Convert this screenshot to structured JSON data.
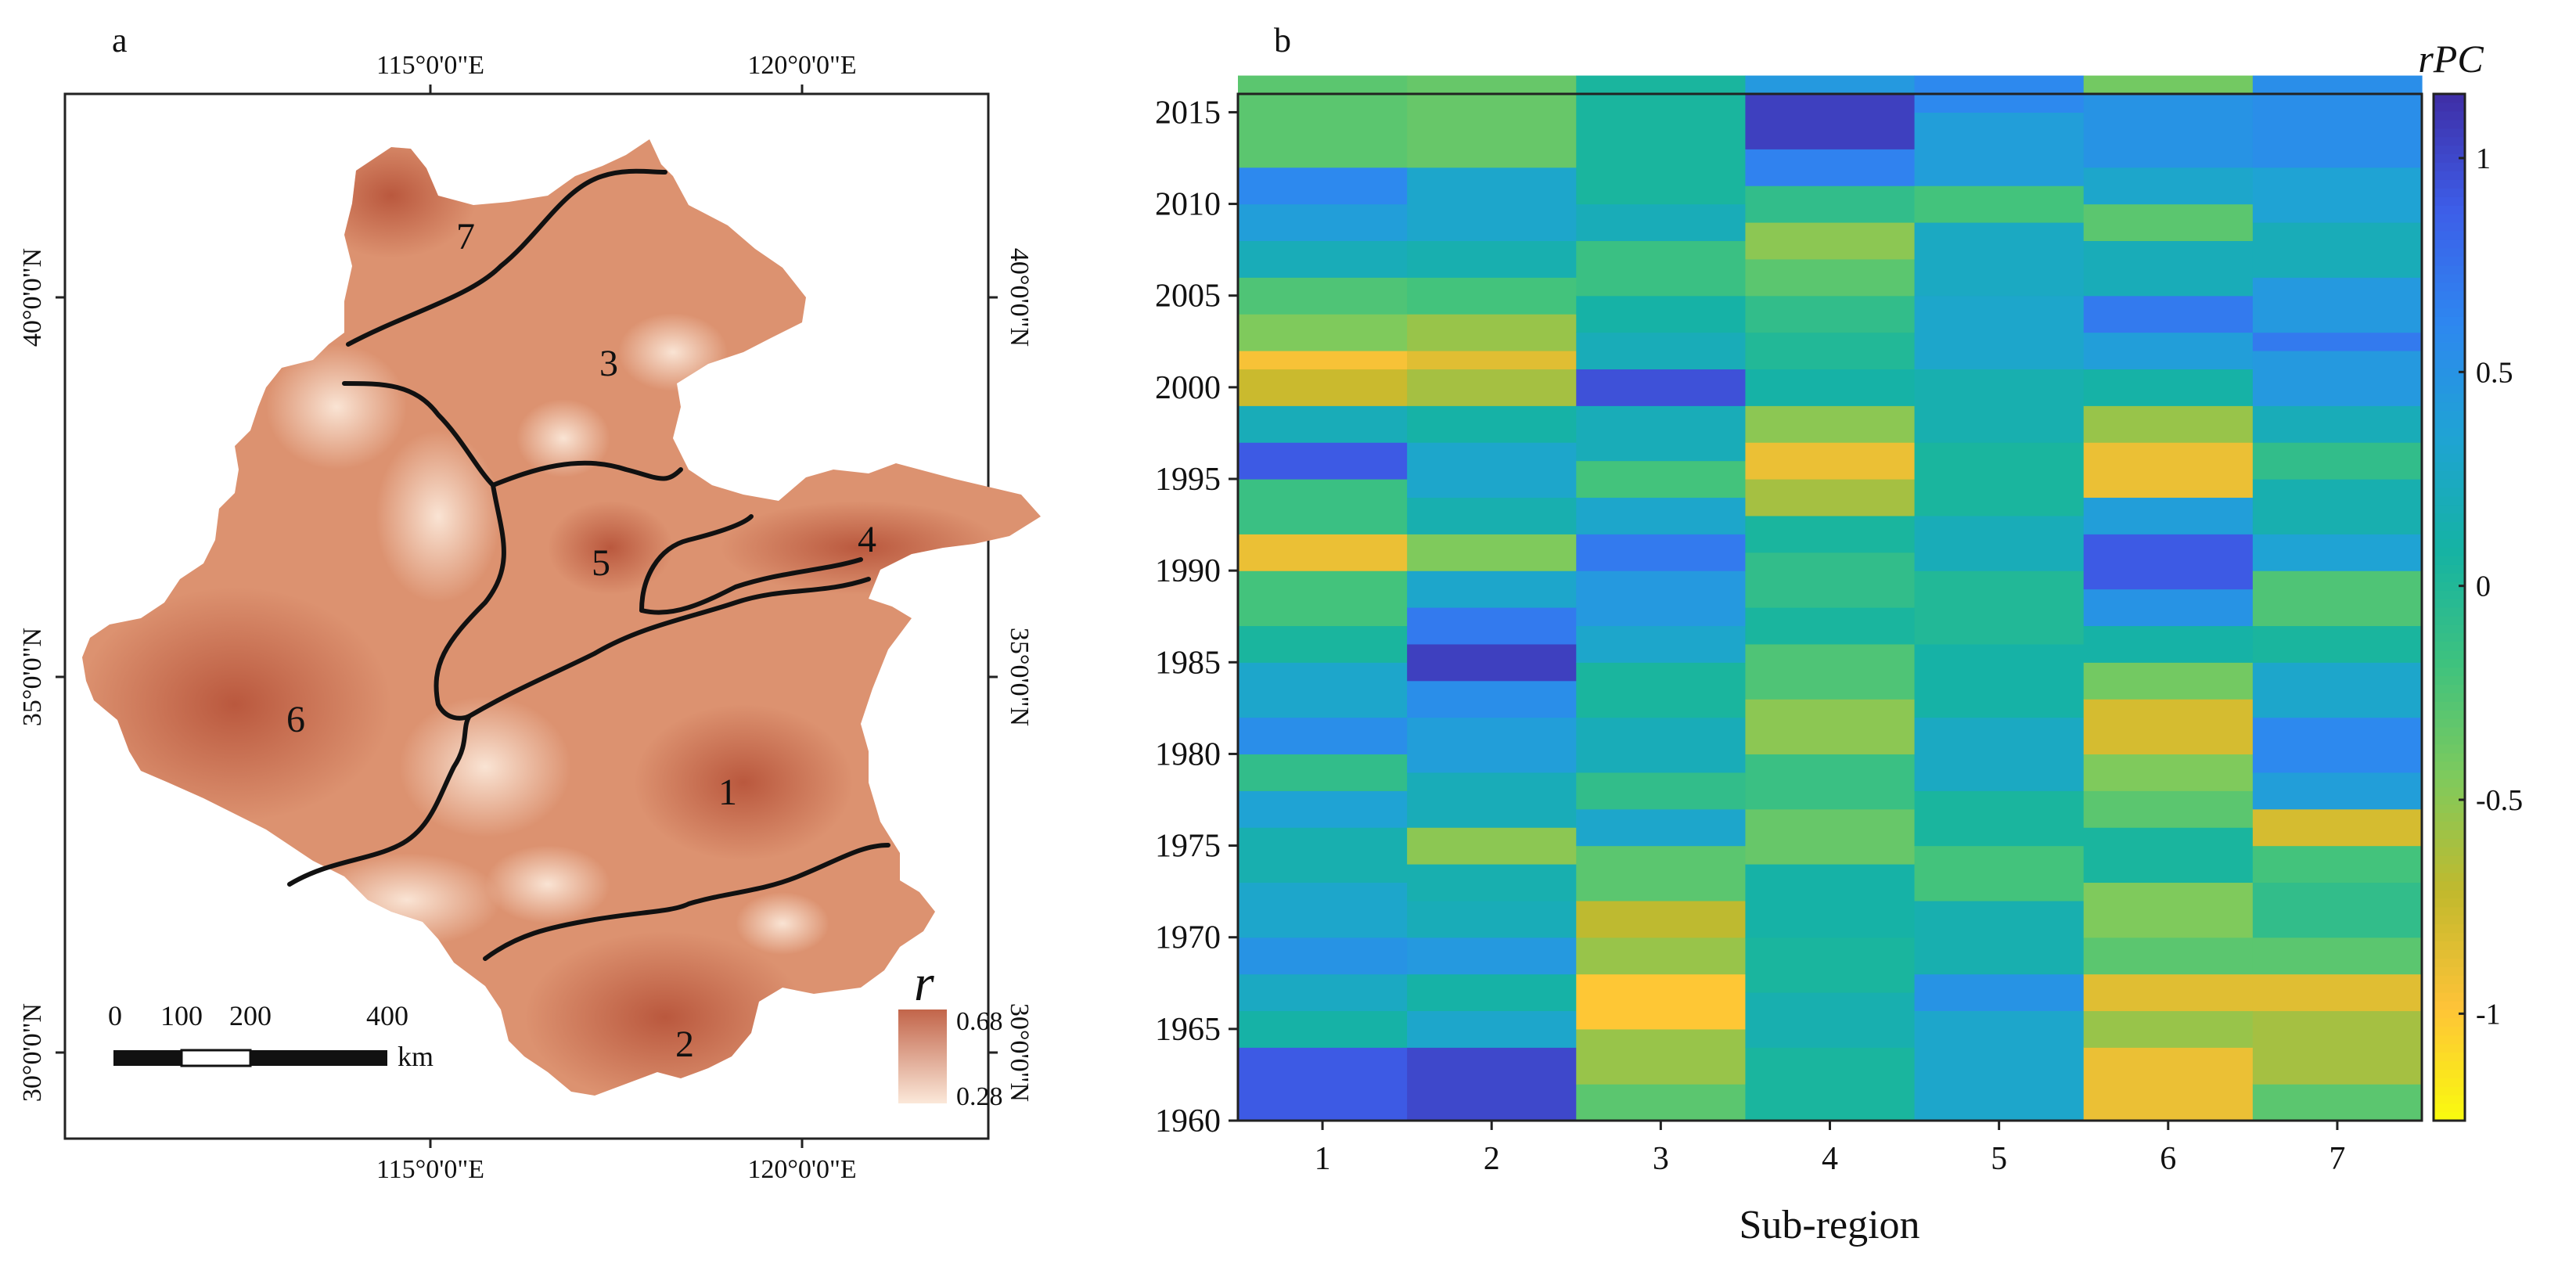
{
  "panel_a": {
    "label": "a",
    "top_ticks": [
      "115°0'0\"E",
      "120°0'0\"E"
    ],
    "bottom_ticks": [
      "115°0'0\"E",
      "120°0'0\"E"
    ],
    "left_ticks": [
      "40°0'0\"N",
      "35°0'0\"N",
      "30°0'0\"N"
    ],
    "right_ticks": [
      "40°0'0\"N",
      "35°0'0\"N",
      "30°0'0\"N"
    ],
    "regions": [
      "1",
      "2",
      "3",
      "4",
      "5",
      "6",
      "7"
    ],
    "scalebar": {
      "ticks": [
        "0",
        "100",
        "200",
        "400"
      ],
      "unit": "km"
    },
    "legend": {
      "symbol": "r",
      "max": "0.68",
      "min": "0.28",
      "max_color": "#c2654a",
      "min_color": "#fbe8d9"
    },
    "colors": {
      "land": "#dc9270",
      "land_light": "#f6d8c2",
      "land_dark": "#b8553b"
    }
  },
  "chart_data": {
    "type": "heatmap",
    "label": "b",
    "xlabel": "Sub-region",
    "x_categories": [
      "1",
      "2",
      "3",
      "4",
      "5",
      "6",
      "7"
    ],
    "y_ticks": [
      "1960",
      "1965",
      "1970",
      "1975",
      "1980",
      "1985",
      "1990",
      "1995",
      "2000",
      "2005",
      "2010",
      "2015"
    ],
    "years": [
      1960,
      2016
    ],
    "colorbar": {
      "title": "rPC",
      "ticks": [
        "1",
        "0.5",
        "0",
        "-0.5",
        "-1"
      ],
      "range": [
        -1.25,
        1.15
      ]
    },
    "colormap": [
      "#f9fb0e",
      "#fec338",
      "#c2b92d",
      "#7fca5c",
      "#3fc27e",
      "#15b3a3",
      "#1fa3d4",
      "#2e87f0",
      "#3d5de8",
      "#3f2ea6"
    ],
    "columns": [
      [
        [
          1960,
          1964,
          0.9
        ],
        [
          1964,
          1966,
          0.1
        ],
        [
          1966,
          1968,
          0.25
        ],
        [
          1968,
          1970,
          0.5
        ],
        [
          1970,
          1973,
          0.3
        ],
        [
          1973,
          1976,
          0.15
        ],
        [
          1976,
          1978,
          0.35
        ],
        [
          1978,
          1980,
          -0.1
        ],
        [
          1980,
          1982,
          0.55
        ],
        [
          1982,
          1985,
          0.3
        ],
        [
          1985,
          1987,
          0.05
        ],
        [
          1987,
          1990,
          -0.2
        ],
        [
          1990,
          1992,
          -0.9
        ],
        [
          1992,
          1995,
          -0.15
        ],
        [
          1995,
          1997,
          0.9
        ],
        [
          1997,
          1999,
          0.2
        ],
        [
          1999,
          2001,
          -0.75
        ],
        [
          2001,
          2002,
          -0.95
        ],
        [
          2002,
          2004,
          -0.45
        ],
        [
          2004,
          2006,
          -0.25
        ],
        [
          2006,
          2008,
          0.2
        ],
        [
          2008,
          2010,
          0.4
        ],
        [
          2010,
          2012,
          0.6
        ],
        [
          2012,
          2017,
          -0.3
        ]
      ],
      [
        [
          1960,
          1964,
          1.0
        ],
        [
          1964,
          1966,
          0.3
        ],
        [
          1966,
          1968,
          0.1
        ],
        [
          1968,
          1970,
          0.45
        ],
        [
          1970,
          1972,
          0.2
        ],
        [
          1972,
          1974,
          0.15
        ],
        [
          1974,
          1976,
          -0.5
        ],
        [
          1976,
          1979,
          0.2
        ],
        [
          1979,
          1982,
          0.4
        ],
        [
          1982,
          1984,
          0.55
        ],
        [
          1984,
          1986,
          1.05
        ],
        [
          1986,
          1988,
          0.7
        ],
        [
          1988,
          1990,
          0.3
        ],
        [
          1990,
          1992,
          -0.45
        ],
        [
          1992,
          1994,
          0.15
        ],
        [
          1994,
          1997,
          0.3
        ],
        [
          1997,
          1999,
          0.1
        ],
        [
          1999,
          2001,
          -0.6
        ],
        [
          2001,
          2002,
          -0.85
        ],
        [
          2002,
          2004,
          -0.55
        ],
        [
          2004,
          2006,
          -0.2
        ],
        [
          2006,
          2008,
          0.15
        ],
        [
          2008,
          2012,
          0.3
        ],
        [
          2012,
          2017,
          -0.35
        ]
      ],
      [
        [
          1960,
          1962,
          -0.3
        ],
        [
          1962,
          1965,
          -0.55
        ],
        [
          1965,
          1968,
          -1.0
        ],
        [
          1968,
          1970,
          -0.55
        ],
        [
          1970,
          1972,
          -0.7
        ],
        [
          1972,
          1975,
          -0.3
        ],
        [
          1975,
          1977,
          0.3
        ],
        [
          1977,
          1979,
          -0.1
        ],
        [
          1979,
          1982,
          0.2
        ],
        [
          1982,
          1985,
          0.05
        ],
        [
          1985,
          1987,
          0.3
        ],
        [
          1987,
          1990,
          0.45
        ],
        [
          1990,
          1992,
          0.7
        ],
        [
          1992,
          1994,
          0.3
        ],
        [
          1994,
          1996,
          -0.2
        ],
        [
          1996,
          1999,
          0.2
        ],
        [
          1999,
          2001,
          0.95
        ],
        [
          2001,
          2003,
          0.2
        ],
        [
          2003,
          2005,
          0.1
        ],
        [
          2005,
          2008,
          -0.15
        ],
        [
          2008,
          2010,
          0.2
        ],
        [
          2010,
          2017,
          0.05
        ]
      ],
      [
        [
          1960,
          1964,
          0.05
        ],
        [
          1964,
          1967,
          0.15
        ],
        [
          1967,
          1970,
          0.05
        ],
        [
          1970,
          1974,
          0.1
        ],
        [
          1974,
          1977,
          -0.35
        ],
        [
          1977,
          1980,
          -0.15
        ],
        [
          1980,
          1983,
          -0.5
        ],
        [
          1983,
          1986,
          -0.25
        ],
        [
          1986,
          1988,
          0.05
        ],
        [
          1988,
          1991,
          -0.1
        ],
        [
          1991,
          1993,
          0.05
        ],
        [
          1993,
          1995,
          -0.6
        ],
        [
          1995,
          1997,
          -0.9
        ],
        [
          1997,
          1999,
          -0.5
        ],
        [
          1999,
          2001,
          0.1
        ],
        [
          2001,
          2003,
          0.0
        ],
        [
          2003,
          2005,
          -0.1
        ],
        [
          2005,
          2007,
          -0.3
        ],
        [
          2007,
          2009,
          -0.5
        ],
        [
          2009,
          2011,
          -0.1
        ],
        [
          2011,
          2013,
          0.65
        ],
        [
          2013,
          2016,
          1.05
        ],
        [
          2016,
          2017,
          0.45
        ]
      ],
      [
        [
          1960,
          1966,
          0.3
        ],
        [
          1966,
          1968,
          0.5
        ],
        [
          1968,
          1972,
          0.15
        ],
        [
          1972,
          1975,
          -0.2
        ],
        [
          1975,
          1978,
          0.05
        ],
        [
          1978,
          1982,
          0.25
        ],
        [
          1982,
          1986,
          0.1
        ],
        [
          1986,
          1990,
          0.0
        ],
        [
          1990,
          1993,
          0.2
        ],
        [
          1993,
          1997,
          0.05
        ],
        [
          1997,
          2001,
          0.15
        ],
        [
          2001,
          2005,
          0.3
        ],
        [
          2005,
          2009,
          0.25
        ],
        [
          2009,
          2011,
          -0.2
        ],
        [
          2011,
          2015,
          0.4
        ],
        [
          2015,
          2017,
          0.6
        ]
      ],
      [
        [
          1960,
          1964,
          -0.9
        ],
        [
          1964,
          1966,
          -0.55
        ],
        [
          1966,
          1968,
          -0.85
        ],
        [
          1968,
          1970,
          -0.3
        ],
        [
          1970,
          1973,
          -0.45
        ],
        [
          1973,
          1976,
          0.05
        ],
        [
          1976,
          1978,
          -0.3
        ],
        [
          1978,
          1980,
          -0.45
        ],
        [
          1980,
          1983,
          -0.8
        ],
        [
          1983,
          1985,
          -0.4
        ],
        [
          1985,
          1987,
          0.1
        ],
        [
          1987,
          1989,
          0.5
        ],
        [
          1989,
          1992,
          0.9
        ],
        [
          1992,
          1994,
          0.4
        ],
        [
          1994,
          1997,
          -0.9
        ],
        [
          1997,
          1999,
          -0.55
        ],
        [
          1999,
          2001,
          0.1
        ],
        [
          2001,
          2003,
          0.4
        ],
        [
          2003,
          2005,
          0.7
        ],
        [
          2005,
          2008,
          0.2
        ],
        [
          2008,
          2010,
          -0.3
        ],
        [
          2010,
          2012,
          0.3
        ],
        [
          2012,
          2016,
          0.5
        ],
        [
          2016,
          2017,
          -0.4
        ]
      ],
      [
        [
          1960,
          1962,
          -0.3
        ],
        [
          1962,
          1966,
          -0.6
        ],
        [
          1966,
          1968,
          -0.85
        ],
        [
          1968,
          1970,
          -0.3
        ],
        [
          1970,
          1973,
          -0.1
        ],
        [
          1973,
          1975,
          -0.2
        ],
        [
          1975,
          1977,
          -0.8
        ],
        [
          1977,
          1979,
          0.4
        ],
        [
          1979,
          1982,
          0.6
        ],
        [
          1982,
          1985,
          0.3
        ],
        [
          1985,
          1987,
          0.05
        ],
        [
          1987,
          1990,
          -0.25
        ],
        [
          1990,
          1992,
          0.35
        ],
        [
          1992,
          1995,
          0.15
        ],
        [
          1995,
          1997,
          -0.1
        ],
        [
          1997,
          1999,
          0.2
        ],
        [
          1999,
          2002,
          0.45
        ],
        [
          2002,
          2003,
          0.7
        ],
        [
          2003,
          2006,
          0.45
        ],
        [
          2006,
          2009,
          0.2
        ],
        [
          2009,
          2012,
          0.35
        ],
        [
          2012,
          2017,
          0.55
        ]
      ]
    ]
  }
}
